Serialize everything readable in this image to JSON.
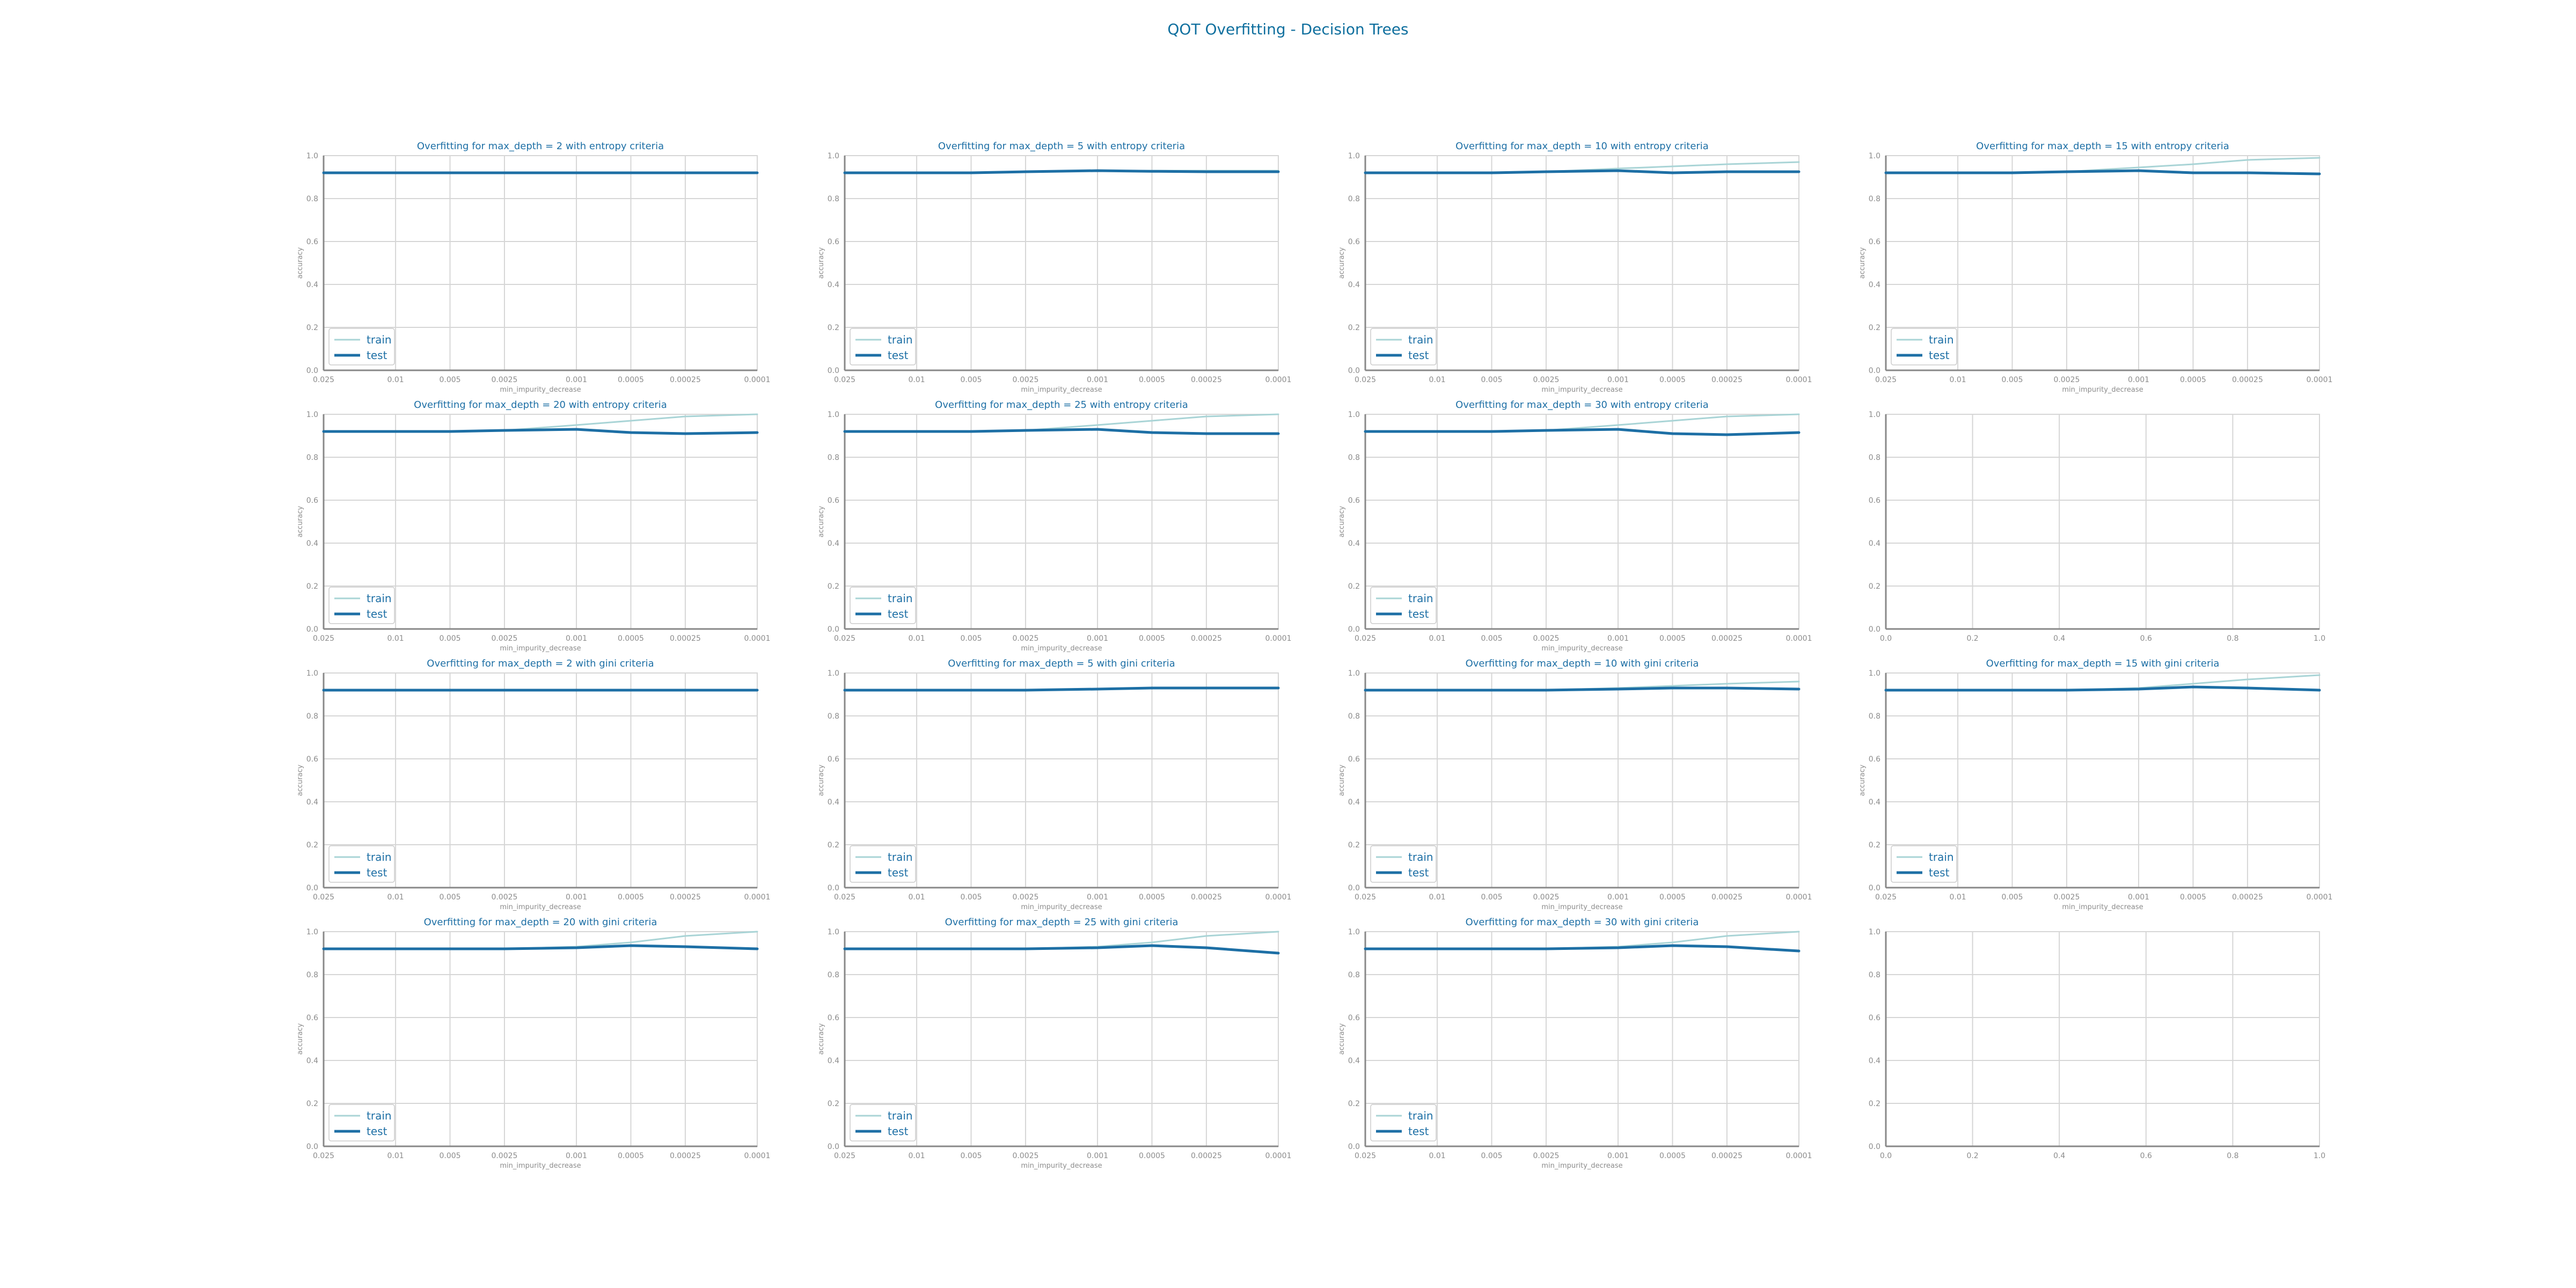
{
  "figure": {
    "title": "QOT Overfitting - Decision Trees",
    "colors": {
      "accent": "#0f6f9e",
      "train": "#a9d4d6",
      "test": "#1d6fa5",
      "grid": "#d6d6d6",
      "axis": "#888888",
      "tick_text": "#8c8c8c"
    }
  },
  "chart_data": [
    {
      "type": "line",
      "title": "Overfitting for max_depth = 2 with entropy criteria",
      "xlabel": "min_impurity_decrease",
      "ylabel": "accuracy",
      "x": [
        0.025,
        0.01,
        0.005,
        0.0025,
        0.001,
        0.0005,
        0.00025,
        0.0001
      ],
      "x_tick_labels": [
        "0.025",
        "0.01",
        "0.005",
        "0.0025",
        "0.001",
        "0.0005",
        "0.00025",
        "0.0001"
      ],
      "x_scale": "log-reversed",
      "ylim": [
        0,
        1
      ],
      "y_ticks": [
        "0.0",
        "0.2",
        "0.4",
        "0.6",
        "0.8",
        "1.0"
      ],
      "legend": "lower-left",
      "grid": true,
      "series": [
        {
          "name": "train",
          "values": [
            0.92,
            0.92,
            0.92,
            0.92,
            0.92,
            0.92,
            0.92,
            0.92
          ]
        },
        {
          "name": "test",
          "values": [
            0.92,
            0.92,
            0.92,
            0.92,
            0.92,
            0.92,
            0.92,
            0.92
          ]
        }
      ]
    },
    {
      "type": "line",
      "title": "Overfitting for max_depth = 5 with entropy criteria",
      "xlabel": "min_impurity_decrease",
      "ylabel": "accuracy",
      "x": [
        0.025,
        0.01,
        0.005,
        0.0025,
        0.001,
        0.0005,
        0.00025,
        0.0001
      ],
      "x_tick_labels": [
        "0.025",
        "0.01",
        "0.005",
        "0.0025",
        "0.001",
        "0.0005",
        "0.00025",
        "0.0001"
      ],
      "x_scale": "log-reversed",
      "ylim": [
        0,
        1
      ],
      "y_ticks": [
        "0.0",
        "0.2",
        "0.4",
        "0.6",
        "0.8",
        "1.0"
      ],
      "legend": "lower-left",
      "grid": true,
      "series": [
        {
          "name": "train",
          "values": [
            0.92,
            0.92,
            0.92,
            0.925,
            0.93,
            0.93,
            0.93,
            0.93
          ]
        },
        {
          "name": "test",
          "values": [
            0.92,
            0.92,
            0.92,
            0.925,
            0.93,
            0.927,
            0.925,
            0.925
          ]
        }
      ]
    },
    {
      "type": "line",
      "title": "Overfitting for max_depth = 10 with entropy criteria",
      "xlabel": "min_impurity_decrease",
      "ylabel": "accuracy",
      "x": [
        0.025,
        0.01,
        0.005,
        0.0025,
        0.001,
        0.0005,
        0.00025,
        0.0001
      ],
      "x_tick_labels": [
        "0.025",
        "0.01",
        "0.005",
        "0.0025",
        "0.001",
        "0.0005",
        "0.00025",
        "0.0001"
      ],
      "x_scale": "log-reversed",
      "ylim": [
        0,
        1
      ],
      "y_ticks": [
        "0.0",
        "0.2",
        "0.4",
        "0.6",
        "0.8",
        "1.0"
      ],
      "legend": "lower-left",
      "grid": true,
      "series": [
        {
          "name": "train",
          "values": [
            0.92,
            0.92,
            0.92,
            0.925,
            0.94,
            0.95,
            0.96,
            0.97
          ]
        },
        {
          "name": "test",
          "values": [
            0.92,
            0.92,
            0.92,
            0.925,
            0.93,
            0.92,
            0.925,
            0.925
          ]
        }
      ]
    },
    {
      "type": "line",
      "title": "Overfitting for max_depth = 15 with entropy criteria",
      "xlabel": "min_impurity_decrease",
      "ylabel": "accuracy",
      "x": [
        0.025,
        0.01,
        0.005,
        0.0025,
        0.001,
        0.0005,
        0.00025,
        0.0001
      ],
      "x_tick_labels": [
        "0.025",
        "0.01",
        "0.005",
        "0.0025",
        "0.001",
        "0.0005",
        "0.00025",
        "0.0001"
      ],
      "x_scale": "log-reversed",
      "ylim": [
        0,
        1
      ],
      "y_ticks": [
        "0.0",
        "0.2",
        "0.4",
        "0.6",
        "0.8",
        "1.0"
      ],
      "legend": "lower-left",
      "grid": true,
      "series": [
        {
          "name": "train",
          "values": [
            0.92,
            0.92,
            0.92,
            0.925,
            0.945,
            0.96,
            0.98,
            0.99
          ]
        },
        {
          "name": "test",
          "values": [
            0.92,
            0.92,
            0.92,
            0.925,
            0.93,
            0.92,
            0.92,
            0.915
          ]
        }
      ]
    },
    {
      "type": "line",
      "title": "Overfitting for max_depth = 20 with entropy criteria",
      "xlabel": "min_impurity_decrease",
      "ylabel": "accuracy",
      "x": [
        0.025,
        0.01,
        0.005,
        0.0025,
        0.001,
        0.0005,
        0.00025,
        0.0001
      ],
      "x_tick_labels": [
        "0.025",
        "0.01",
        "0.005",
        "0.0025",
        "0.001",
        "0.0005",
        "0.00025",
        "0.0001"
      ],
      "x_scale": "log-reversed",
      "ylim": [
        0,
        1
      ],
      "y_ticks": [
        "0.0",
        "0.2",
        "0.4",
        "0.6",
        "0.8",
        "1.0"
      ],
      "legend": "lower-left",
      "grid": true,
      "series": [
        {
          "name": "train",
          "values": [
            0.92,
            0.92,
            0.92,
            0.925,
            0.95,
            0.97,
            0.99,
            1.0
          ]
        },
        {
          "name": "test",
          "values": [
            0.92,
            0.92,
            0.92,
            0.925,
            0.93,
            0.915,
            0.91,
            0.915
          ]
        }
      ]
    },
    {
      "type": "line",
      "title": "Overfitting for max_depth = 25 with entropy criteria",
      "xlabel": "min_impurity_decrease",
      "ylabel": "accuracy",
      "x": [
        0.025,
        0.01,
        0.005,
        0.0025,
        0.001,
        0.0005,
        0.00025,
        0.0001
      ],
      "x_tick_labels": [
        "0.025",
        "0.01",
        "0.005",
        "0.0025",
        "0.001",
        "0.0005",
        "0.00025",
        "0.0001"
      ],
      "x_scale": "log-reversed",
      "ylim": [
        0,
        1
      ],
      "y_ticks": [
        "0.0",
        "0.2",
        "0.4",
        "0.6",
        "0.8",
        "1.0"
      ],
      "legend": "lower-left",
      "grid": true,
      "series": [
        {
          "name": "train",
          "values": [
            0.92,
            0.92,
            0.92,
            0.925,
            0.95,
            0.97,
            0.99,
            1.0
          ]
        },
        {
          "name": "test",
          "values": [
            0.92,
            0.92,
            0.92,
            0.925,
            0.93,
            0.915,
            0.91,
            0.91
          ]
        }
      ]
    },
    {
      "type": "line",
      "title": "Overfitting for max_depth = 30 with entropy criteria",
      "xlabel": "min_impurity_decrease",
      "ylabel": "accuracy",
      "x": [
        0.025,
        0.01,
        0.005,
        0.0025,
        0.001,
        0.0005,
        0.00025,
        0.0001
      ],
      "x_tick_labels": [
        "0.025",
        "0.01",
        "0.005",
        "0.0025",
        "0.001",
        "0.0005",
        "0.00025",
        "0.0001"
      ],
      "x_scale": "log-reversed",
      "ylim": [
        0,
        1
      ],
      "y_ticks": [
        "0.0",
        "0.2",
        "0.4",
        "0.6",
        "0.8",
        "1.0"
      ],
      "legend": "lower-left",
      "grid": true,
      "series": [
        {
          "name": "train",
          "values": [
            0.92,
            0.92,
            0.92,
            0.925,
            0.95,
            0.97,
            0.99,
            1.0
          ]
        },
        {
          "name": "test",
          "values": [
            0.92,
            0.92,
            0.92,
            0.925,
            0.93,
            0.91,
            0.905,
            0.915
          ]
        }
      ]
    },
    {
      "type": "line",
      "title": "",
      "xlabel": "",
      "ylabel": "",
      "ylim": [
        0,
        1
      ],
      "xlim": [
        0,
        1
      ],
      "x_tick_labels": [
        "0.0",
        "0.2",
        "0.4",
        "0.6",
        "0.8",
        "1.0"
      ],
      "y_ticks": [
        "0.0",
        "0.2",
        "0.4",
        "0.6",
        "0.8",
        "1.0"
      ],
      "grid": true,
      "empty": true,
      "series": []
    },
    {
      "type": "line",
      "title": "Overfitting for max_depth = 2 with gini criteria",
      "xlabel": "min_impurity_decrease",
      "ylabel": "accuracy",
      "x": [
        0.025,
        0.01,
        0.005,
        0.0025,
        0.001,
        0.0005,
        0.00025,
        0.0001
      ],
      "x_tick_labels": [
        "0.025",
        "0.01",
        "0.005",
        "0.0025",
        "0.001",
        "0.0005",
        "0.00025",
        "0.0001"
      ],
      "x_scale": "log-reversed",
      "ylim": [
        0,
        1
      ],
      "y_ticks": [
        "0.0",
        "0.2",
        "0.4",
        "0.6",
        "0.8",
        "1.0"
      ],
      "legend": "lower-left",
      "grid": true,
      "series": [
        {
          "name": "train",
          "values": [
            0.92,
            0.92,
            0.92,
            0.92,
            0.92,
            0.92,
            0.92,
            0.92
          ]
        },
        {
          "name": "test",
          "values": [
            0.92,
            0.92,
            0.92,
            0.92,
            0.92,
            0.92,
            0.92,
            0.92
          ]
        }
      ]
    },
    {
      "type": "line",
      "title": "Overfitting for max_depth = 5 with gini criteria",
      "xlabel": "min_impurity_decrease",
      "ylabel": "accuracy",
      "x": [
        0.025,
        0.01,
        0.005,
        0.0025,
        0.001,
        0.0005,
        0.00025,
        0.0001
      ],
      "x_tick_labels": [
        "0.025",
        "0.01",
        "0.005",
        "0.0025",
        "0.001",
        "0.0005",
        "0.00025",
        "0.0001"
      ],
      "x_scale": "log-reversed",
      "ylim": [
        0,
        1
      ],
      "y_ticks": [
        "0.0",
        "0.2",
        "0.4",
        "0.6",
        "0.8",
        "1.0"
      ],
      "legend": "lower-left",
      "grid": true,
      "series": [
        {
          "name": "train",
          "values": [
            0.92,
            0.92,
            0.92,
            0.92,
            0.925,
            0.93,
            0.93,
            0.93
          ]
        },
        {
          "name": "test",
          "values": [
            0.92,
            0.92,
            0.92,
            0.92,
            0.925,
            0.93,
            0.93,
            0.93
          ]
        }
      ]
    },
    {
      "type": "line",
      "title": "Overfitting for max_depth = 10 with gini criteria",
      "xlabel": "min_impurity_decrease",
      "ylabel": "accuracy",
      "x": [
        0.025,
        0.01,
        0.005,
        0.0025,
        0.001,
        0.0005,
        0.00025,
        0.0001
      ],
      "x_tick_labels": [
        "0.025",
        "0.01",
        "0.005",
        "0.0025",
        "0.001",
        "0.0005",
        "0.00025",
        "0.0001"
      ],
      "x_scale": "log-reversed",
      "ylim": [
        0,
        1
      ],
      "y_ticks": [
        "0.0",
        "0.2",
        "0.4",
        "0.6",
        "0.8",
        "1.0"
      ],
      "legend": "lower-left",
      "grid": true,
      "series": [
        {
          "name": "train",
          "values": [
            0.92,
            0.92,
            0.92,
            0.92,
            0.93,
            0.94,
            0.95,
            0.96
          ]
        },
        {
          "name": "test",
          "values": [
            0.92,
            0.92,
            0.92,
            0.92,
            0.925,
            0.93,
            0.93,
            0.925
          ]
        }
      ]
    },
    {
      "type": "line",
      "title": "Overfitting for max_depth = 15 with gini criteria",
      "xlabel": "min_impurity_decrease",
      "ylabel": "accuracy",
      "x": [
        0.025,
        0.01,
        0.005,
        0.0025,
        0.001,
        0.0005,
        0.00025,
        0.0001
      ],
      "x_tick_labels": [
        "0.025",
        "0.01",
        "0.005",
        "0.0025",
        "0.001",
        "0.0005",
        "0.00025",
        "0.0001"
      ],
      "x_scale": "log-reversed",
      "ylim": [
        0,
        1
      ],
      "y_ticks": [
        "0.0",
        "0.2",
        "0.4",
        "0.6",
        "0.8",
        "1.0"
      ],
      "legend": "lower-left",
      "grid": true,
      "series": [
        {
          "name": "train",
          "values": [
            0.92,
            0.92,
            0.92,
            0.92,
            0.93,
            0.95,
            0.97,
            0.99
          ]
        },
        {
          "name": "test",
          "values": [
            0.92,
            0.92,
            0.92,
            0.92,
            0.925,
            0.935,
            0.93,
            0.92
          ]
        }
      ]
    },
    {
      "type": "line",
      "title": "Overfitting for max_depth = 20 with gini criteria",
      "xlabel": "min_impurity_decrease",
      "ylabel": "accuracy",
      "x": [
        0.025,
        0.01,
        0.005,
        0.0025,
        0.001,
        0.0005,
        0.00025,
        0.0001
      ],
      "x_tick_labels": [
        "0.025",
        "0.01",
        "0.005",
        "0.0025",
        "0.001",
        "0.0005",
        "0.00025",
        "0.0001"
      ],
      "x_scale": "log-reversed",
      "ylim": [
        0,
        1
      ],
      "y_ticks": [
        "0.0",
        "0.2",
        "0.4",
        "0.6",
        "0.8",
        "1.0"
      ],
      "legend": "lower-left",
      "grid": true,
      "series": [
        {
          "name": "train",
          "values": [
            0.92,
            0.92,
            0.92,
            0.92,
            0.93,
            0.95,
            0.98,
            1.0
          ]
        },
        {
          "name": "test",
          "values": [
            0.92,
            0.92,
            0.92,
            0.92,
            0.925,
            0.935,
            0.93,
            0.92
          ]
        }
      ]
    },
    {
      "type": "line",
      "title": "Overfitting for max_depth = 25 with gini criteria",
      "xlabel": "min_impurity_decrease",
      "ylabel": "accuracy",
      "x": [
        0.025,
        0.01,
        0.005,
        0.0025,
        0.001,
        0.0005,
        0.00025,
        0.0001
      ],
      "x_tick_labels": [
        "0.025",
        "0.01",
        "0.005",
        "0.0025",
        "0.001",
        "0.0005",
        "0.00025",
        "0.0001"
      ],
      "x_scale": "log-reversed",
      "ylim": [
        0,
        1
      ],
      "y_ticks": [
        "0.0",
        "0.2",
        "0.4",
        "0.6",
        "0.8",
        "1.0"
      ],
      "legend": "lower-left",
      "grid": true,
      "series": [
        {
          "name": "train",
          "values": [
            0.92,
            0.92,
            0.92,
            0.92,
            0.93,
            0.95,
            0.98,
            1.0
          ]
        },
        {
          "name": "test",
          "values": [
            0.92,
            0.92,
            0.92,
            0.92,
            0.925,
            0.935,
            0.925,
            0.9
          ]
        }
      ]
    },
    {
      "type": "line",
      "title": "Overfitting for max_depth = 30 with gini criteria",
      "xlabel": "min_impurity_decrease",
      "ylabel": "accuracy",
      "x": [
        0.025,
        0.01,
        0.005,
        0.0025,
        0.001,
        0.0005,
        0.00025,
        0.0001
      ],
      "x_tick_labels": [
        "0.025",
        "0.01",
        "0.005",
        "0.0025",
        "0.001",
        "0.0005",
        "0.00025",
        "0.0001"
      ],
      "x_scale": "log-reversed",
      "ylim": [
        0,
        1
      ],
      "y_ticks": [
        "0.0",
        "0.2",
        "0.4",
        "0.6",
        "0.8",
        "1.0"
      ],
      "legend": "lower-left",
      "grid": true,
      "series": [
        {
          "name": "train",
          "values": [
            0.92,
            0.92,
            0.92,
            0.92,
            0.93,
            0.95,
            0.98,
            1.0
          ]
        },
        {
          "name": "test",
          "values": [
            0.92,
            0.92,
            0.92,
            0.92,
            0.925,
            0.935,
            0.93,
            0.91
          ]
        }
      ]
    },
    {
      "type": "line",
      "title": "",
      "xlabel": "",
      "ylabel": "",
      "ylim": [
        0,
        1
      ],
      "xlim": [
        0,
        1
      ],
      "x_tick_labels": [
        "0.0",
        "0.2",
        "0.4",
        "0.6",
        "0.8",
        "1.0"
      ],
      "y_ticks": [
        "0.0",
        "0.2",
        "0.4",
        "0.6",
        "0.8",
        "1.0"
      ],
      "grid": true,
      "empty": true,
      "series": []
    }
  ]
}
